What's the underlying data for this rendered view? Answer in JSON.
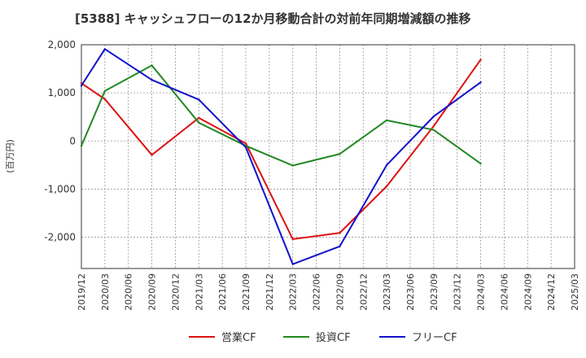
{
  "chart_data": {
    "type": "line",
    "title": "[5388]  キャッシュフローの12か月移動合計の対前年同期増減額の推移",
    "ylabel": "(百万円)",
    "xlabel": "",
    "x": [
      "2019/12",
      "2020/03",
      "2020/06",
      "2020/09",
      "2020/12",
      "2021/03",
      "2021/06",
      "2021/09",
      "2021/12",
      "2022/03",
      "2022/06",
      "2022/09",
      "2022/12",
      "2023/03",
      "2023/06",
      "2023/09",
      "2023/12",
      "2024/03",
      "2024/06",
      "2024/09",
      "2024/12",
      "2025/03"
    ],
    "ylim": [
      -2650,
      2000
    ],
    "yticks": [
      2000,
      1000,
      0,
      -1000,
      -2000
    ],
    "ytick_labels": [
      "2,000",
      "1,000",
      "0",
      "-1,000",
      "-2,000"
    ],
    "grid": true,
    "legend_position": "bottom",
    "series": [
      {
        "name": "営業CF",
        "color": "#dd1111",
        "values": [
          1200,
          870,
          null,
          -290,
          null,
          480,
          null,
          -50,
          null,
          -2040,
          null,
          -1910,
          null,
          -940,
          null,
          310,
          null,
          1690,
          null,
          null,
          null,
          null
        ]
      },
      {
        "name": "投資CF",
        "color": "#228822",
        "values": [
          -100,
          1040,
          null,
          1570,
          null,
          380,
          null,
          -100,
          null,
          -510,
          null,
          -270,
          null,
          430,
          null,
          230,
          null,
          -470,
          null,
          null,
          null,
          null
        ]
      },
      {
        "name": "フリーCF",
        "color": "#1111cc",
        "values": [
          1150,
          1910,
          null,
          1270,
          null,
          860,
          null,
          -130,
          null,
          -2560,
          null,
          -2190,
          null,
          -500,
          null,
          510,
          null,
          1220,
          null,
          null,
          null,
          null
        ]
      }
    ]
  }
}
